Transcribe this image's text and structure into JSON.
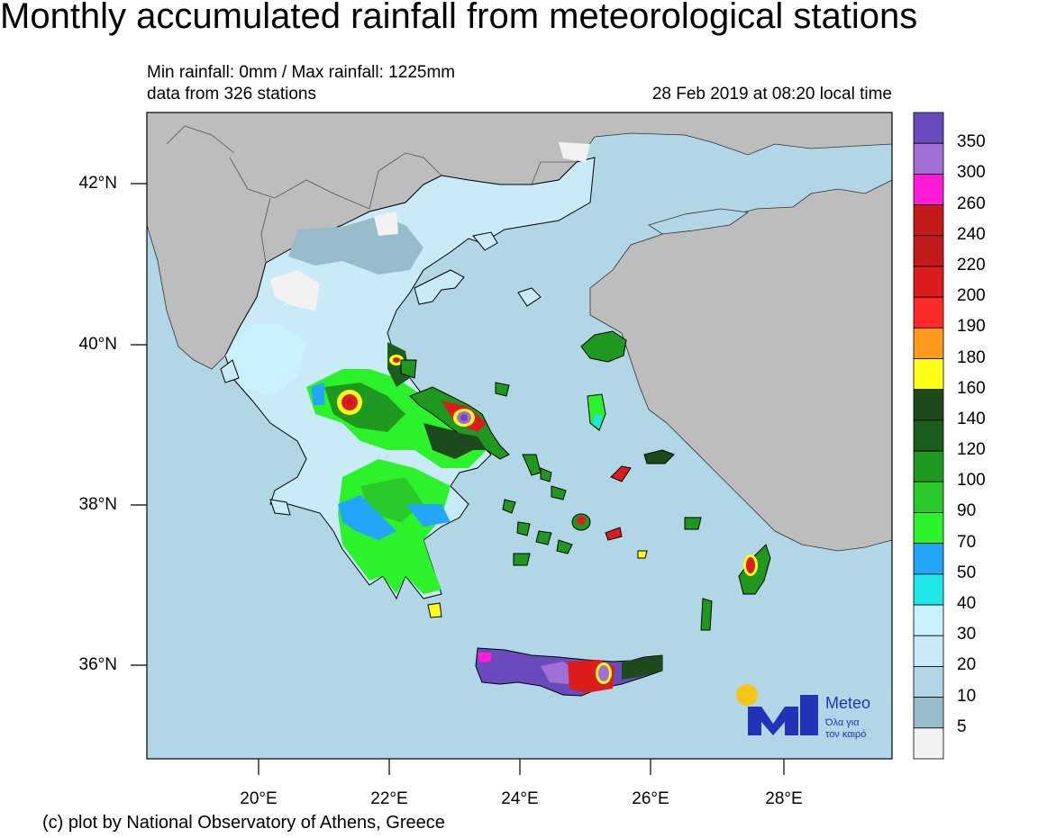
{
  "title": "Monthly accumulated rainfall from meteorological stations",
  "subtitle": {
    "range": "Min rainfall: 0mm / Max rainfall: 1225mm",
    "stations": "data from 326 stations",
    "timestamp": "28 Feb 2019 at 08:20 local time"
  },
  "axes": {
    "lat_labels": [
      "42°N",
      "40°N",
      "38°N",
      "36°N"
    ],
    "lon_labels": [
      "20°E",
      "22°E",
      "24°E",
      "26°E",
      "28°E"
    ]
  },
  "legend": {
    "labels": [
      "350",
      "300",
      "260",
      "240",
      "220",
      "200",
      "190",
      "180",
      "160",
      "140",
      "120",
      "100",
      "90",
      "70",
      "50",
      "40",
      "30",
      "20",
      "10",
      "5"
    ],
    "colors": [
      "#6a4bbd",
      "#a26fd6",
      "#ff1bd8",
      "#c41a1a",
      "#c11b1b",
      "#dc1d1d",
      "#fb2b2b",
      "#ff9a1d",
      "#ffff1a",
      "#1c4a1c",
      "#1c5c1c",
      "#1f981f",
      "#2bca2b",
      "#2cf22c",
      "#23a6f8",
      "#1fe6e6",
      "#c9f1ff",
      "#c9ebf7",
      "#b1d7e6",
      "#96bdc9",
      "#f2f2f2"
    ]
  },
  "colors": {
    "sea": "#b1d7e6",
    "land": "#bdbdbd",
    "border": "#000000"
  },
  "logo": {
    "name": "Meteo",
    "tag_line1": "Όλα για",
    "tag_line2": "τον καιρό"
  },
  "credit": "(c) plot by National Observatory of Athens, Greece"
}
